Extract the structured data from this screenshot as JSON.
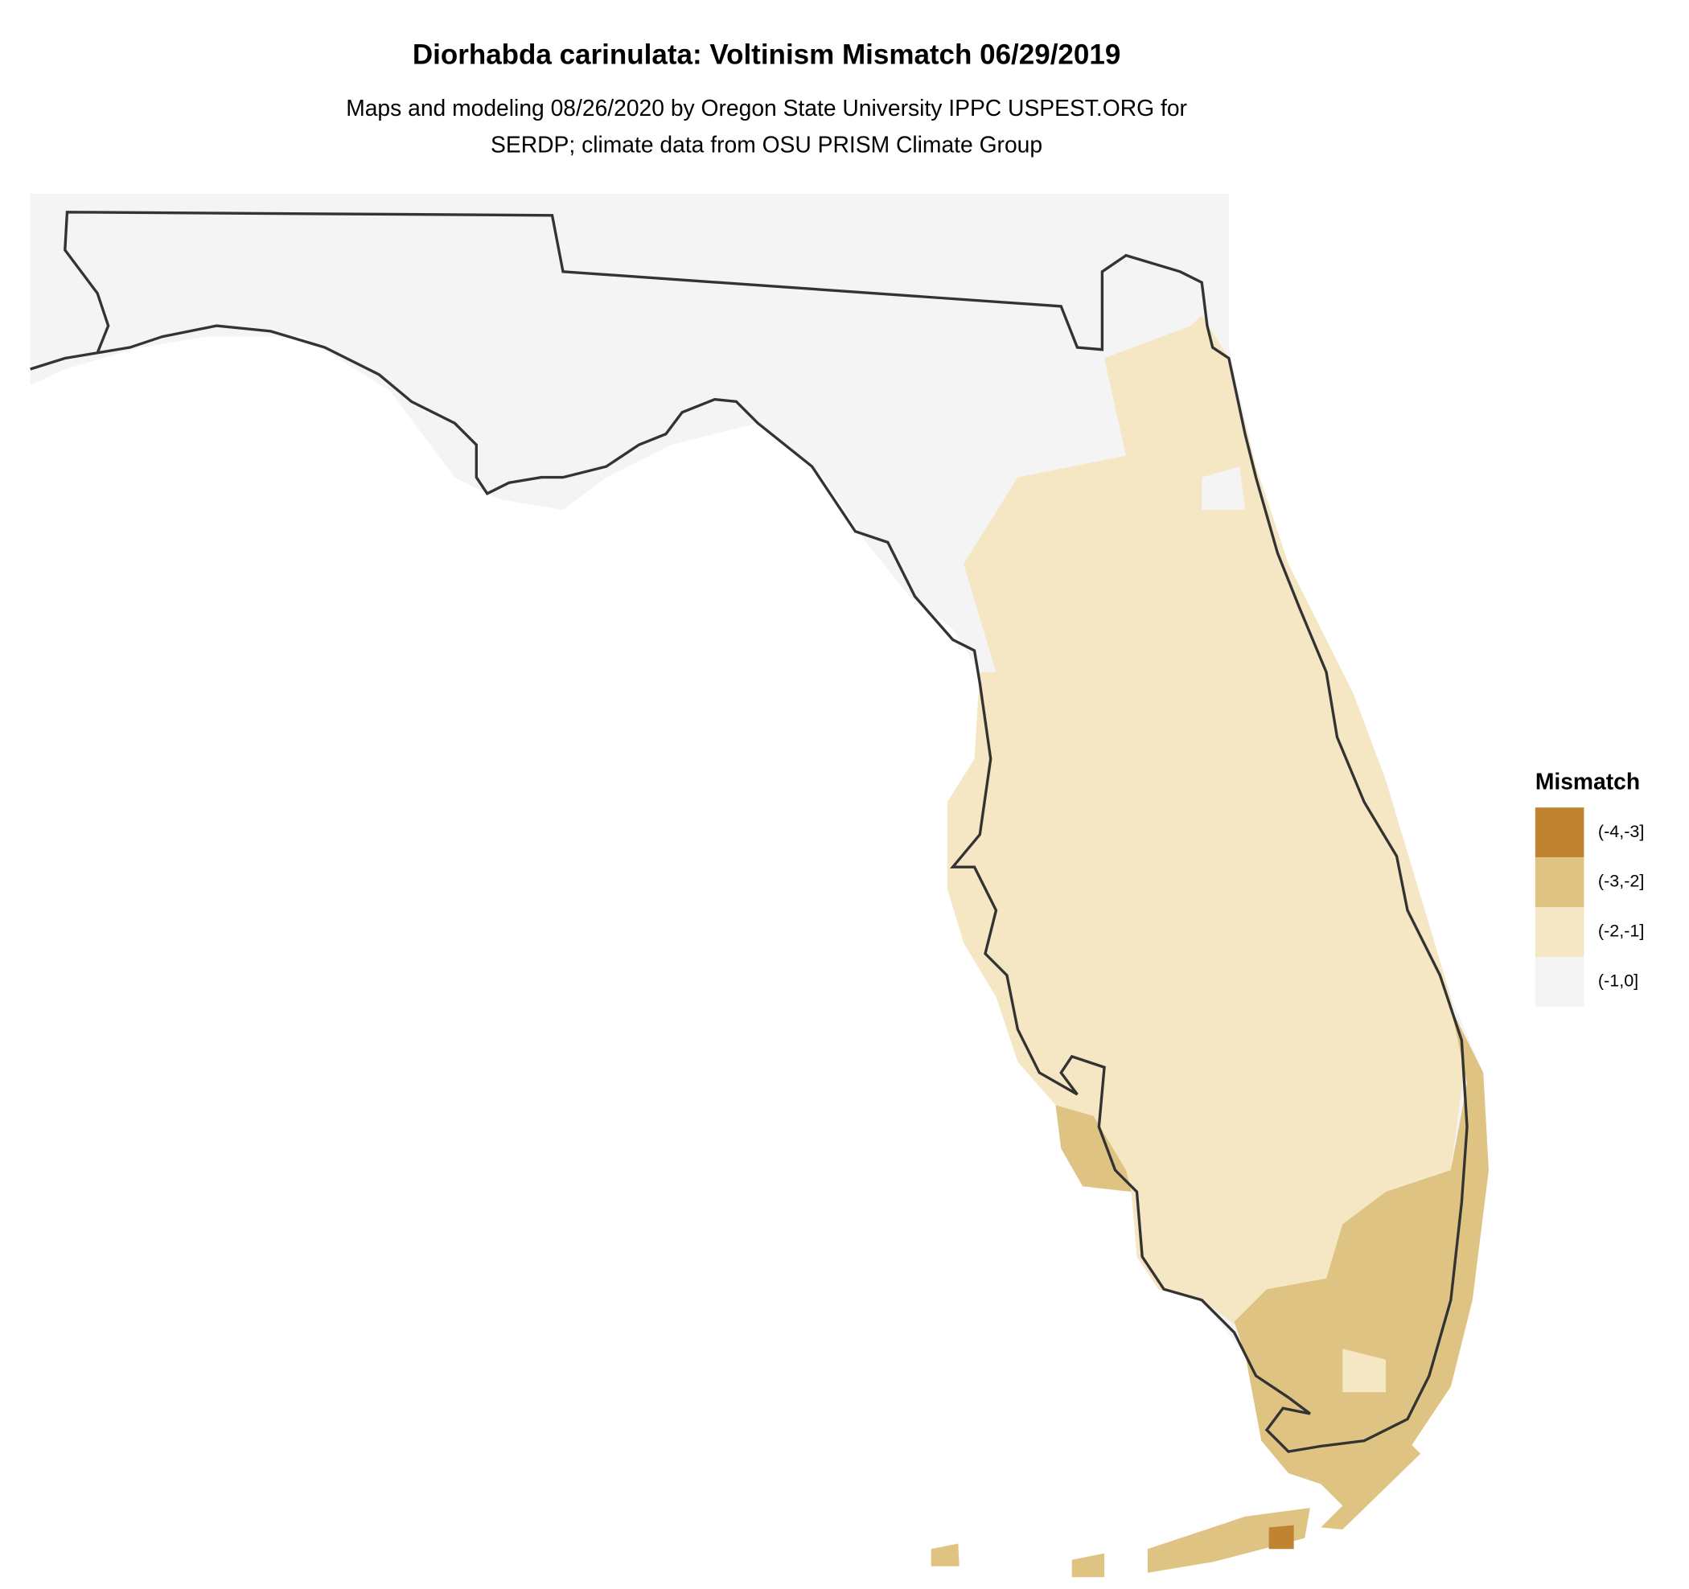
{
  "title": "Diorhabda carinulata: Voltinism Mismatch 06/29/2019",
  "subtitle": [
    "Maps and modeling 08/26/2020 by Oregon State University IPPC USPEST.ORG for",
    "SERDP; climate data from OSU PRISM Climate Group"
  ],
  "legend": {
    "title": "Mismatch",
    "items": [
      {
        "label": "(-4,-3]",
        "color": "#c08431"
      },
      {
        "label": "(-3,-2]",
        "color": "#dfc383"
      },
      {
        "label": "(-2,-1]",
        "color": "#f5e7c3"
      },
      {
        "label": "(-1,0]",
        "color": "#f4f4f4"
      }
    ]
  }
}
